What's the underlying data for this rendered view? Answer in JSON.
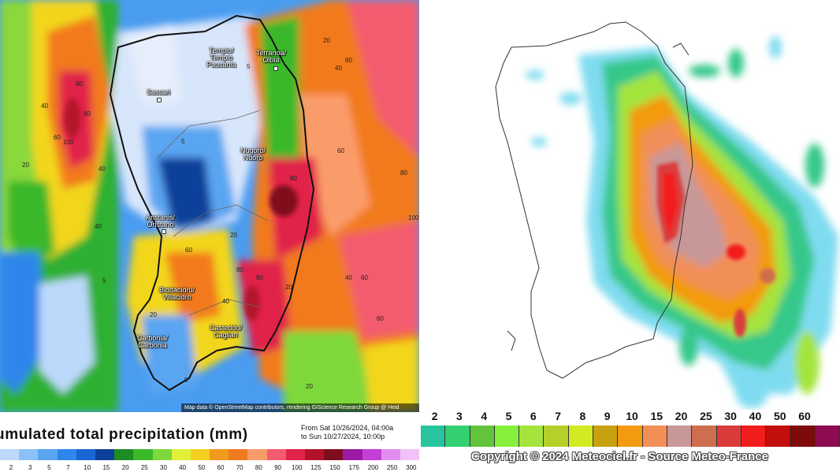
{
  "left_map": {
    "cities": [
      {
        "id": "tempio",
        "line1": "Tempiu/",
        "line2": "Tempio",
        "line3": "Pausania"
      },
      {
        "id": "olbia",
        "line1": "Terranoa/",
        "line2": "Olbia",
        "line3": ""
      },
      {
        "id": "sassari",
        "line1": "Sassari",
        "line2": "",
        "line3": ""
      },
      {
        "id": "nuoro",
        "line1": "Nùgoro/",
        "line2": "Nuoro",
        "line3": ""
      },
      {
        "id": "oristano",
        "line1": "Aristanis/",
        "line2": "Oristano",
        "line3": ""
      },
      {
        "id": "villacidro",
        "line1": "Biddacidru/",
        "line2": "Villacidro",
        "line3": ""
      },
      {
        "id": "carbonia",
        "line1": "Carbonia/",
        "line2": "Carbonia",
        "line3": ""
      },
      {
        "id": "cagliari",
        "line1": "Casteddu/",
        "line2": "Casteddu",
        "line3": "Cagliari"
      }
    ],
    "contour_labels": [
      "20",
      "40",
      "60",
      "80",
      "100",
      "5",
      "40",
      "60",
      "80",
      "20",
      "5",
      "40",
      "60",
      "80",
      "20",
      "40",
      "60",
      "80",
      "5",
      "20",
      "40",
      "60",
      "80",
      "100",
      "20",
      "40",
      "60",
      "80",
      "20",
      "5"
    ],
    "attribution": "Map data © OpenStreetMap contributors, rendering GIScience Research Group @ Heid",
    "title": "umulated total precipitation (mm)",
    "range_line1": "From Sat 10/26/2024, 04:00a",
    "range_line2": "to Sun 10/27/2024, 10:00p",
    "legend_ticks": [
      "2",
      "3",
      "5",
      "7",
      "10",
      "15",
      "20",
      "25",
      "30",
      "40",
      "50",
      "60",
      "70",
      "80",
      "90",
      "100",
      "125",
      "150",
      "175",
      "200",
      "250",
      "300"
    ],
    "legend_colors": [
      "#bcd9fb",
      "#8cc0f7",
      "#5aa5f1",
      "#2d86ea",
      "#1a66d4",
      "#0b3f9a",
      "#1d8c22",
      "#3ab82a",
      "#7fd83a",
      "#e0ef3a",
      "#f4d020",
      "#f19a20",
      "#f07a1f",
      "#fa9c6a",
      "#f35c6e",
      "#e1234a",
      "#b3122b",
      "#7f0d1f",
      "#9a1aa6",
      "#c33fd6",
      "#e18ef0",
      "#f2c2f7"
    ]
  },
  "right_map": {
    "legend_labels": [
      "2",
      "3",
      "4",
      "5",
      "6",
      "7",
      "8",
      "9",
      "10",
      "15",
      "20",
      "25",
      "30",
      "40",
      "50",
      "60"
    ],
    "legend_colors": [
      "#28c4a0",
      "#32d070",
      "#62c43a",
      "#86f03a",
      "#a4e43c",
      "#b6cf2a",
      "#d2ea22",
      "#c8a010",
      "#f39a10",
      "#f28f58",
      "#c89898",
      "#cf6e4e",
      "#da3c3c",
      "#f21e1e",
      "#c30e0e",
      "#7e0a0a",
      "#8c0c50"
    ],
    "copyright": "Copyright © 2024 Meteociel.fr - Source Meteo-France"
  }
}
